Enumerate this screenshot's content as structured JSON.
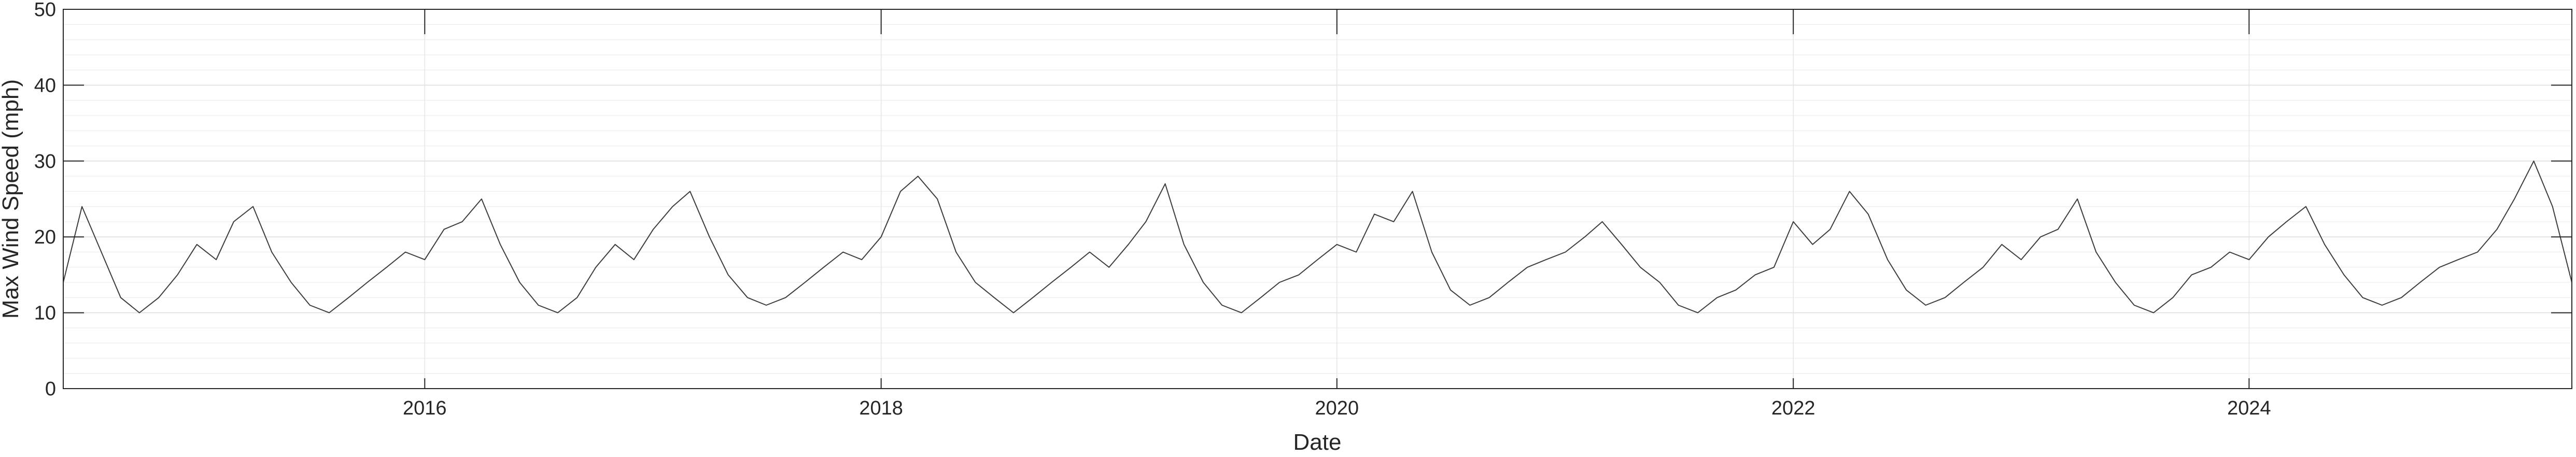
{
  "chart_data": {
    "type": "line",
    "title": "",
    "xlabel": "Date",
    "ylabel": "Max Wind Speed (mph)",
    "x_type": "date",
    "xlim": [
      "2014-06-01",
      "2025-06-01"
    ],
    "ylim": [
      0,
      50
    ],
    "xticks": [
      "2016-01-01",
      "2018-01-01",
      "2020-01-01",
      "2022-01-01",
      "2024-01-01"
    ],
    "xtick_labels": [
      "2016",
      "2018",
      "2020",
      "2022",
      "2024"
    ],
    "yticks": [
      0,
      10,
      20,
      30,
      40,
      50
    ],
    "ytick_labels": [
      "0",
      "10",
      "20",
      "30",
      "40",
      "50"
    ],
    "y_minor_step": 2,
    "grid": true,
    "line_color": "#3c3c3c",
    "series": [
      {
        "x": [
          "2014-06-01",
          "2014-07-01",
          "2014-08-01",
          "2014-09-01",
          "2014-10-01",
          "2014-11-01",
          "2014-12-01",
          "2015-01-01",
          "2015-02-01",
          "2015-03-01",
          "2015-04-01",
          "2015-05-01",
          "2015-06-01",
          "2015-07-01",
          "2015-08-01",
          "2015-09-01",
          "2015-10-01",
          "2015-11-01",
          "2015-12-01",
          "2016-01-01",
          "2016-02-01",
          "2016-03-01",
          "2016-04-01",
          "2016-05-01",
          "2016-06-01",
          "2016-07-01",
          "2016-08-01",
          "2016-09-01",
          "2016-10-01",
          "2016-11-01",
          "2016-12-01",
          "2017-01-01",
          "2017-02-01",
          "2017-03-01",
          "2017-04-01",
          "2017-05-01",
          "2017-06-01",
          "2017-07-01",
          "2017-08-01",
          "2017-09-01",
          "2017-10-01",
          "2017-11-01",
          "2017-12-01",
          "2018-01-01",
          "2018-02-01",
          "2018-03-01",
          "2018-04-01",
          "2018-05-01",
          "2018-06-01",
          "2018-07-01",
          "2018-08-01",
          "2018-09-01",
          "2018-10-01",
          "2018-11-01",
          "2018-12-01",
          "2019-01-01",
          "2019-02-01",
          "2019-03-01",
          "2019-04-01",
          "2019-05-01",
          "2019-06-01",
          "2019-07-01",
          "2019-08-01",
          "2019-09-01",
          "2019-10-01",
          "2019-11-01",
          "2019-12-01",
          "2020-01-01",
          "2020-02-01",
          "2020-03-01",
          "2020-04-01",
          "2020-05-01",
          "2020-06-01",
          "2020-07-01",
          "2020-08-01",
          "2020-09-01",
          "2020-10-01",
          "2020-11-01",
          "2020-12-01",
          "2021-01-01",
          "2021-02-01",
          "2021-03-01",
          "2021-04-01",
          "2021-05-01",
          "2021-06-01",
          "2021-07-01",
          "2021-08-01",
          "2021-09-01",
          "2021-10-01",
          "2021-11-01",
          "2021-12-01",
          "2022-01-01",
          "2022-02-01",
          "2022-03-01",
          "2022-04-01",
          "2022-05-01",
          "2022-06-01",
          "2022-07-01",
          "2022-08-01",
          "2022-09-01",
          "2022-10-01",
          "2022-11-01",
          "2022-12-01",
          "2023-01-01",
          "2023-02-01",
          "2023-03-01",
          "2023-04-01",
          "2023-05-01",
          "2023-06-01",
          "2023-07-01",
          "2023-08-01",
          "2023-09-01",
          "2023-10-01",
          "2023-11-01",
          "2023-12-01",
          "2024-01-01",
          "2024-02-01",
          "2024-03-01",
          "2024-04-01",
          "2024-05-01",
          "2024-06-01",
          "2024-07-01",
          "2024-08-01",
          "2024-09-01",
          "2024-10-01",
          "2024-11-01",
          "2024-12-01",
          "2025-01-01",
          "2025-02-01",
          "2025-03-01",
          "2025-04-01",
          "2025-05-01",
          "2025-06-01"
        ],
        "y": [
          14,
          24,
          18,
          12,
          10,
          12,
          15,
          19,
          17,
          22,
          24,
          18,
          14,
          11,
          10,
          12,
          14,
          16,
          18,
          17,
          21,
          22,
          25,
          19,
          14,
          11,
          10,
          12,
          16,
          19,
          17,
          21,
          24,
          26,
          20,
          15,
          12,
          11,
          12,
          14,
          16,
          18,
          17,
          20,
          26,
          28,
          25,
          18,
          14,
          12,
          10,
          12,
          14,
          16,
          18,
          16,
          19,
          22,
          27,
          19,
          14,
          11,
          10,
          12,
          14,
          15,
          17,
          19,
          18,
          23,
          22,
          26,
          18,
          13,
          11,
          12,
          14,
          16,
          17,
          18,
          20,
          22,
          19,
          16,
          14,
          11,
          10,
          12,
          13,
          15,
          16,
          22,
          19,
          21,
          26,
          23,
          17,
          13,
          11,
          12,
          14,
          16,
          19,
          17,
          20,
          21,
          25,
          18,
          14,
          11,
          10,
          12,
          15,
          16,
          18,
          17,
          20,
          22,
          24,
          19,
          15,
          12,
          11,
          12,
          14,
          16,
          17,
          18,
          21,
          25,
          30,
          24,
          14
        ]
      }
    ]
  }
}
